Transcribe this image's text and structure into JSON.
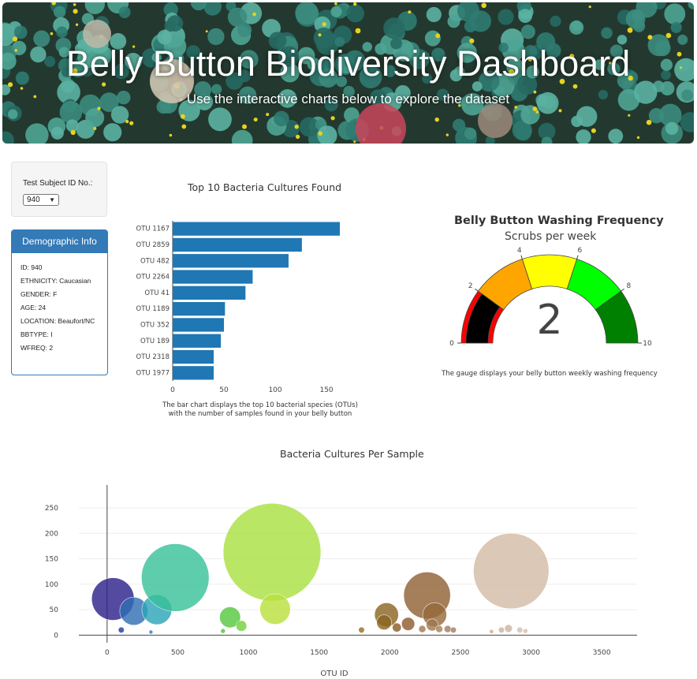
{
  "header": {
    "title": "Belly Button Biodiversity Dashboard",
    "subtitle": "Use the interactive charts below to explore the dataset"
  },
  "selector": {
    "label": "Test Subject ID No.:",
    "selected": "940"
  },
  "demographics": {
    "heading": "Demographic Info",
    "lines": [
      "ID: 940",
      "ETHNICITY: Caucasian",
      "GENDER: F",
      "AGE: 24",
      "LOCATION: Beaufort/NC",
      "BBTYPE: I",
      "WFREQ: 2"
    ]
  },
  "bar_caption": {
    "line1": "The bar chart displays the top 10 bacterial species (OTUs)",
    "line2": "with the number of samples found in your belly button"
  },
  "gauge_caption": "The gauge displays your belly button weekly washing frequency",
  "colors": {
    "bar": "#1f77b4",
    "panel": "#337ab7",
    "gauge_bands": [
      "#000000",
      "#ff0000",
      "#ffa500",
      "#ffff00",
      "#00ff00",
      "#008000"
    ]
  },
  "chart_data": [
    {
      "type": "bar",
      "orientation": "horizontal",
      "title": "Top 10 Bacteria Cultures Found",
      "categories": [
        "OTU 1167",
        "OTU 2859",
        "OTU 482",
        "OTU 2264",
        "OTU 41",
        "OTU 1189",
        "OTU 352",
        "OTU 189",
        "OTU 2318",
        "OTU 1977"
      ],
      "values": [
        163,
        126,
        113,
        78,
        71,
        51,
        50,
        47,
        40,
        40
      ],
      "xticks": [
        0,
        50,
        100,
        150
      ],
      "xlim": [
        0,
        173
      ]
    },
    {
      "type": "gauge",
      "title": "Belly Button Washing Frequency",
      "subtitle": "Scrubs per week",
      "value": 2,
      "range": [
        0,
        10
      ],
      "ticks": [
        0,
        2,
        4,
        6,
        8,
        10
      ],
      "bands": [
        [
          0,
          2
        ],
        [
          2,
          4
        ],
        [
          4,
          6
        ],
        [
          6,
          8
        ],
        [
          8,
          10
        ]
      ]
    },
    {
      "type": "scatter",
      "title": "Bacteria Cultures Per Sample",
      "xlabel": "OTU ID",
      "ylabel": "",
      "xlim": [
        -200,
        3750
      ],
      "ylim": [
        -15,
        295
      ],
      "xticks": [
        0,
        500,
        1000,
        1500,
        2000,
        2500,
        3000,
        3500
      ],
      "yticks": [
        0,
        50,
        100,
        150,
        200,
        250
      ],
      "points": [
        {
          "x": 41,
          "y": 71,
          "color": "#2a1f8a"
        },
        {
          "x": 189,
          "y": 47,
          "color": "#2f6db3"
        },
        {
          "x": 352,
          "y": 50,
          "color": "#2aa5b7"
        },
        {
          "x": 482,
          "y": 113,
          "color": "#37c198"
        },
        {
          "x": 1167,
          "y": 163,
          "color": "#a9e041"
        },
        {
          "x": 1189,
          "y": 51,
          "color": "#b8e13a"
        },
        {
          "x": 870,
          "y": 35,
          "color": "#55c83b"
        },
        {
          "x": 950,
          "y": 18,
          "color": "#6fd23a"
        },
        {
          "x": 2859,
          "y": 126,
          "color": "#d3bba5"
        },
        {
          "x": 2264,
          "y": 78,
          "color": "#8f5e32"
        },
        {
          "x": 2318,
          "y": 40,
          "color": "#956a3a"
        },
        {
          "x": 1977,
          "y": 40,
          "color": "#8a6420"
        },
        {
          "x": 1960,
          "y": 25,
          "color": "#8a6420"
        },
        {
          "x": 2050,
          "y": 15,
          "color": "#8a5b22"
        },
        {
          "x": 2130,
          "y": 22,
          "color": "#8c5a2c"
        },
        {
          "x": 2230,
          "y": 12,
          "color": "#a2774f"
        },
        {
          "x": 2300,
          "y": 20,
          "color": "#a07850"
        },
        {
          "x": 2350,
          "y": 12,
          "color": "#a87f59"
        },
        {
          "x": 2410,
          "y": 12,
          "color": "#a17c60"
        },
        {
          "x": 2450,
          "y": 10,
          "color": "#a17c60"
        },
        {
          "x": 1800,
          "y": 10,
          "color": "#957019"
        },
        {
          "x": 100,
          "y": 10,
          "color": "#1f3a9a"
        },
        {
          "x": 310,
          "y": 6,
          "color": "#2a7ab8"
        },
        {
          "x": 820,
          "y": 8,
          "color": "#4fc43b"
        },
        {
          "x": 2790,
          "y": 10,
          "color": "#cdb3a0"
        },
        {
          "x": 2840,
          "y": 13,
          "color": "#cdb3a0"
        },
        {
          "x": 2920,
          "y": 10,
          "color": "#d4beaf"
        },
        {
          "x": 2960,
          "y": 8,
          "color": "#d4beaf"
        },
        {
          "x": 2720,
          "y": 7,
          "color": "#c6aa94"
        }
      ]
    }
  ]
}
